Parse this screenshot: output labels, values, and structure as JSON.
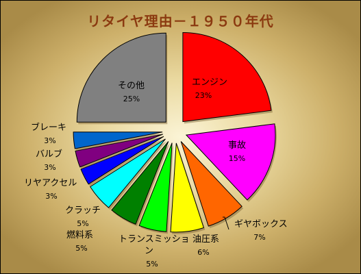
{
  "chart_data": {
    "type": "pie",
    "title": "リタイヤ理由－１９５０年代",
    "slices": [
      {
        "label": "エンジン",
        "value": 23,
        "value_label": "23%",
        "color": "#ff0000"
      },
      {
        "label": "事故",
        "value": 15,
        "value_label": "15%",
        "color": "#ff00ff"
      },
      {
        "label": "ギヤボックス",
        "value": 7,
        "value_label": "7%",
        "color": "#ff6600"
      },
      {
        "label": "油圧系",
        "value": 6,
        "value_label": "6%",
        "color": "#ffff00"
      },
      {
        "label": "トランスミッション",
        "label_lines": [
          "トランスミッショ",
          "ン"
        ],
        "value": 5,
        "value_label": "5%",
        "color": "#00ff00"
      },
      {
        "label": "燃料系",
        "value": 5,
        "value_label": "5%",
        "color": "#008000"
      },
      {
        "label": "クラッチ",
        "value": 5,
        "value_label": "5%",
        "color": "#00ffff"
      },
      {
        "label": "リヤアクセル",
        "value": 3,
        "value_label": "3%",
        "color": "#0000ff"
      },
      {
        "label": "バルブ",
        "value": 3,
        "value_label": "3%",
        "color": "#800080"
      },
      {
        "label": "ブレーキ",
        "value": 3,
        "value_label": "3%",
        "color": "#0066cc"
      },
      {
        "label": "その他",
        "value": 25,
        "value_label": "25%",
        "color": "#808080"
      }
    ],
    "legend": "none",
    "exploded": true
  }
}
